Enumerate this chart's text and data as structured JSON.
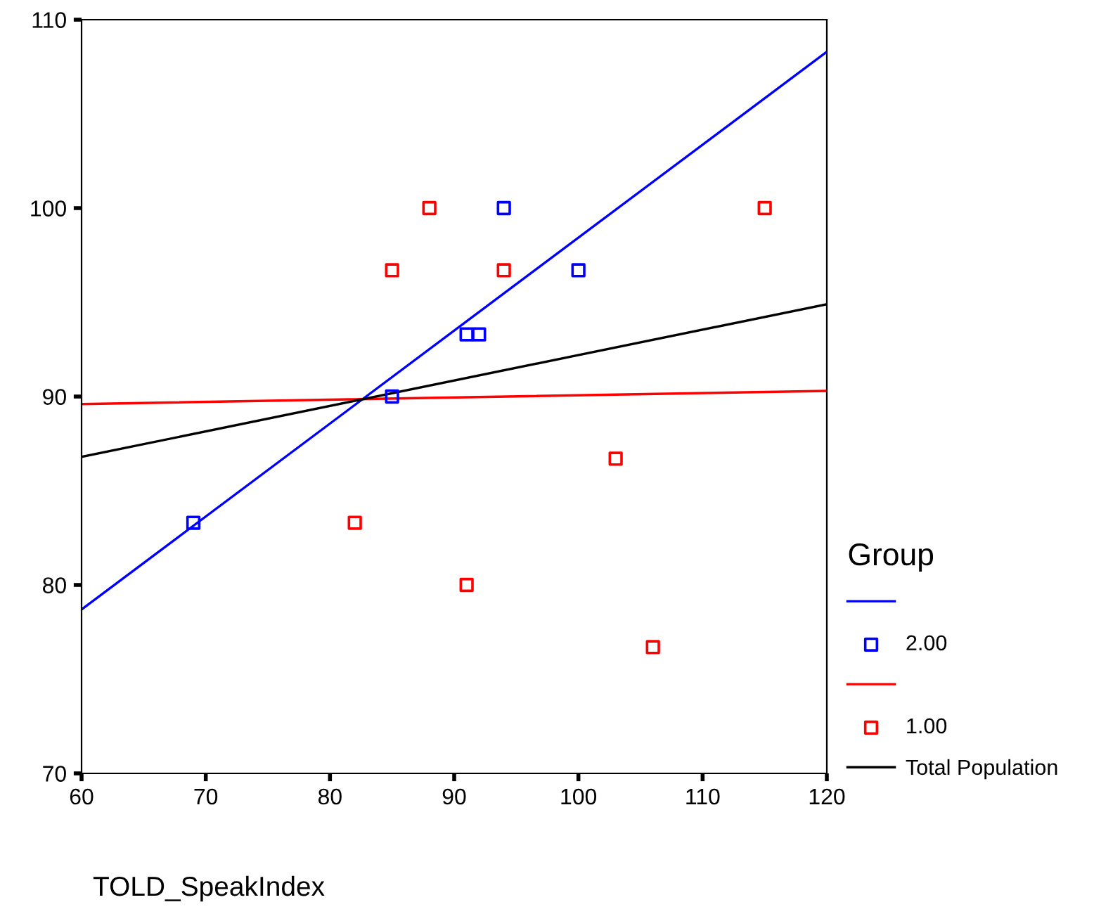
{
  "chart_data": {
    "type": "scatter",
    "xlabel": "TOLD_SpeakIndex",
    "legend_title": "Group",
    "legend": "right",
    "grid": false,
    "xlim": [
      60,
      120
    ],
    "xticks": [
      60,
      70,
      80,
      90,
      100,
      110,
      120
    ],
    "ylim": [
      70,
      110
    ],
    "yticks": [
      70,
      80,
      90,
      100,
      110
    ],
    "series": [
      {
        "type": "line",
        "color": "#0000ff",
        "x": [
          60,
          120
        ],
        "values": [
          78.7,
          108.3
        ]
      },
      {
        "name": "2.00",
        "marker": "square",
        "color": "#0000ff",
        "x": [
          69,
          85,
          91,
          92,
          94,
          100
        ],
        "values": [
          83.3,
          90,
          93.3,
          93.3,
          100,
          96.7
        ]
      },
      {
        "type": "line",
        "color": "#ff0000",
        "x": [
          60,
          120
        ],
        "values": [
          89.6,
          90.3
        ]
      },
      {
        "name": "1.00",
        "marker": "square",
        "color": "#ff0000",
        "x": [
          88,
          85,
          94,
          82,
          91,
          103,
          106,
          115
        ],
        "values": [
          100,
          96.7,
          96.7,
          83.3,
          80,
          86.7,
          76.7,
          100
        ]
      },
      {
        "type": "line",
        "name": "Total Population",
        "color": "#000000",
        "x": [
          60,
          120
        ],
        "values": [
          86.8,
          94.9
        ]
      }
    ]
  }
}
